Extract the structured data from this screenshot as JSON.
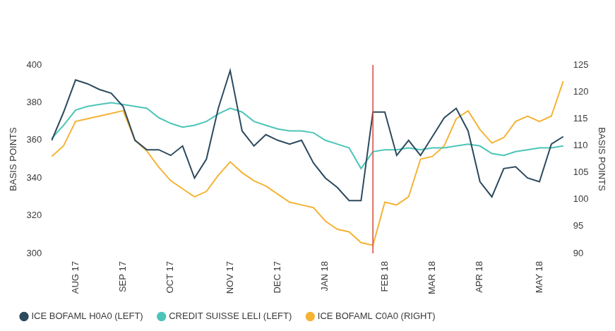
{
  "chart_data": {
    "type": "line",
    "categories": [
      null,
      null,
      "AUG 17",
      null,
      null,
      null,
      "SEP 17",
      null,
      null,
      null,
      "OCT 17",
      null,
      null,
      null,
      null,
      "NOV 17",
      null,
      null,
      null,
      "DEC 17",
      null,
      null,
      null,
      "JAN 18",
      null,
      null,
      null,
      null,
      "FEB 18",
      null,
      null,
      null,
      "MAR 18",
      null,
      null,
      null,
      "APR 18",
      null,
      null,
      null,
      null,
      "MAY 18",
      null,
      null
    ],
    "series": [
      {
        "name": "ICE BOFAML H0A0 (LEFT)",
        "color": "#2c4a5e",
        "values": [
          360,
          375,
          392,
          390,
          387,
          385,
          378,
          360,
          355,
          355,
          352,
          357,
          340,
          350,
          377,
          397,
          365,
          357,
          363,
          360,
          358,
          360,
          348,
          340,
          335,
          328,
          328,
          375,
          375,
          352,
          360,
          352,
          362,
          372,
          377,
          365,
          338,
          330,
          345,
          346,
          340,
          338,
          358,
          362
        ]
      },
      {
        "name": "CREDIT SUISSE LELI (LEFT)",
        "color": "#4cc5b8",
        "values": [
          361,
          368,
          376,
          378,
          379,
          380,
          379,
          378,
          377,
          372,
          369,
          367,
          368,
          370,
          374,
          377,
          375,
          370,
          368,
          366,
          365,
          365,
          364,
          360,
          358,
          356,
          345,
          354,
          355,
          355,
          356,
          355,
          356,
          356,
          357,
          358,
          357,
          353,
          352,
          354,
          355,
          356,
          356,
          357
        ]
      },
      {
        "name": "ICE BOFAML C0A0 (RIGHT)",
        "color": "#f5b335",
        "axis": "y2",
        "values": [
          108,
          110,
          114.5,
          115,
          115.5,
          116,
          116.5,
          111,
          109,
          106,
          103.5,
          102,
          100.5,
          101.5,
          104.5,
          107,
          105,
          103.5,
          102.5,
          101,
          99.5,
          99,
          98.5,
          96,
          94.5,
          94,
          92,
          91.5,
          99.5,
          99,
          100.5,
          107.5,
          108,
          110,
          115,
          116.5,
          113,
          110.5,
          111.5,
          114.5,
          115.5,
          114.5,
          115.5,
          122
        ]
      }
    ],
    "ylabel": "BASIS POINTS",
    "y2label": "BASIS POINTS",
    "ylim": [
      300,
      400
    ],
    "yticks": [
      300,
      320,
      340,
      360,
      380,
      400
    ],
    "y2lim": [
      90,
      125
    ],
    "y2ticks": [
      90,
      95,
      100,
      105,
      110,
      115,
      120,
      125
    ],
    "grid": false,
    "legend": "bottom",
    "vertical_line": {
      "position": 27,
      "color": "#d9443a"
    }
  }
}
